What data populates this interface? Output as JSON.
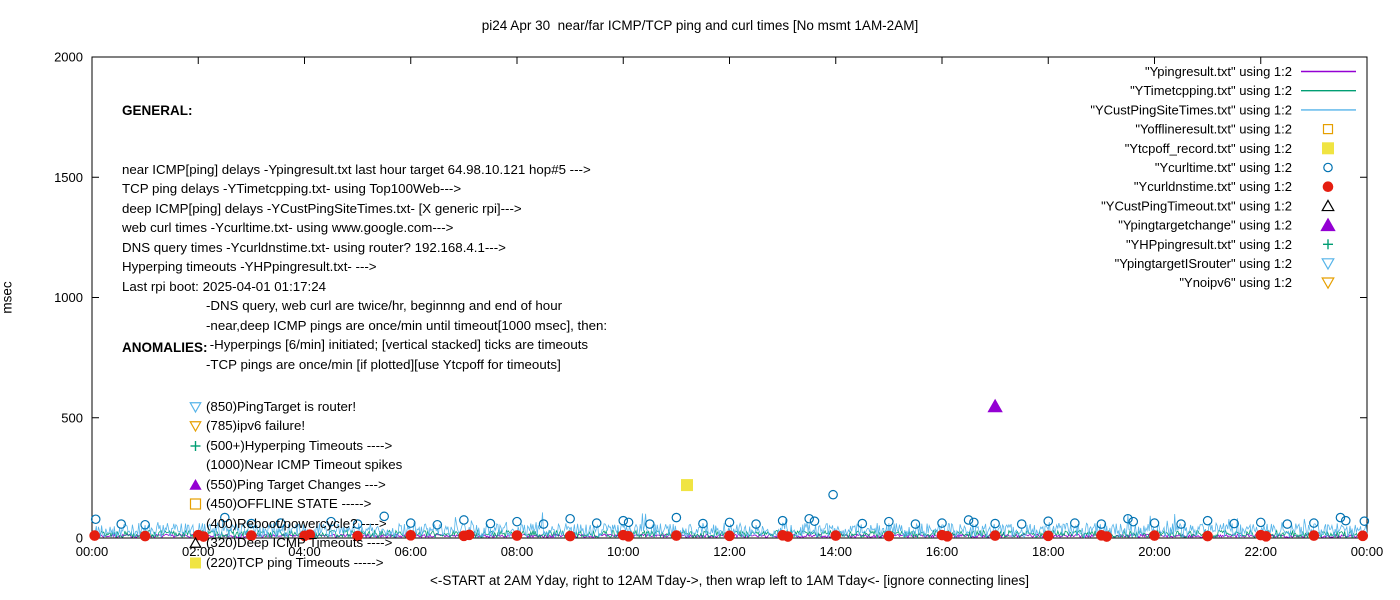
{
  "title": "pi24 Apr 30  near/far ICMP/TCP ping and curl times [No msmt 1AM-2AM]",
  "ylabel": "msec",
  "xlabel": "<-START at 2AM Yday, right to 12AM Tday->, then wrap left to 1AM Tday<- [ignore connecting lines]",
  "general": {
    "header": "GENERAL:",
    "lines": [
      "near ICMP[ping] delays -Ypingresult.txt last hour target 64.98.10.121 hop#5 --->",
      "TCP ping delays -YTimetcpping.txt- using Top100Web--->",
      "deep ICMP[ping] delays -YCustPingSiteTimes.txt- [X generic rpi]--->",
      "web curl times -Ycurltime.txt- using www.google.com--->",
      "DNS query times -Ycurldnstime.txt- using router? 192.168.4.1--->",
      "Hyperping timeouts -YHPpingresult.txt- --->",
      "Last rpi boot: 2025-04-01 01:17:24"
    ],
    "indented_lines": [
      "-DNS query, web curl are twice/hr, beginnng and end of hour",
      "-near,deep ICMP pings are once/min until timeout[1000 msec], then:",
      " -Hyperpings [6/min] initiated; [vertical stacked] ticks are timeouts",
      "-TCP pings are once/min [if plotted][use Ytcpoff for timeouts]"
    ]
  },
  "anomalies": {
    "header": "ANOMALIES:",
    "items": [
      {
        "icon": "triangle-down-open",
        "color": "#56b4e9",
        "text": "(850)PingTarget is router!"
      },
      {
        "icon": "triangle-down-open",
        "color": "#e69f00",
        "text": "(785)ipv6 failure!"
      },
      {
        "icon": "plus",
        "color": "#009e73",
        "text": "(500+)Hyperping Timeouts ---->"
      },
      {
        "icon": null,
        "color": null,
        "text": "(1000)Near ICMP Timeout spikes"
      },
      {
        "icon": "triangle-up-filled",
        "color": "#9400d3",
        "text": "(550)Ping Target Changes --->"
      },
      {
        "icon": "square-open",
        "color": "#e69f00",
        "text": "(450)OFFLINE STATE ----->"
      },
      {
        "icon": null,
        "color": null,
        "text": "(400)Reboot/powercycle? ---->"
      },
      {
        "icon": "triangle-up-open",
        "color": "#000000",
        "text": "(320)Deep ICMP Timeouts ---->"
      },
      {
        "icon": "square-filled",
        "color": "#f0e442",
        "text": "(220)TCP ping Timeouts ----->"
      }
    ]
  },
  "chart_data": {
    "type": "scatter",
    "x_unit": "time-of-day-hours",
    "x_range_hours": [
      0,
      24
    ],
    "x_tick_labels": [
      "00:00",
      "02:00",
      "04:00",
      "06:00",
      "08:00",
      "10:00",
      "12:00",
      "14:00",
      "16:00",
      "18:00",
      "20:00",
      "22:00",
      "00:00"
    ],
    "ylim": [
      0,
      2000
    ],
    "y_ticks": [
      0,
      500,
      1000,
      1500,
      2000
    ],
    "grid": false,
    "legend_position": "top-right-inside",
    "series": [
      {
        "name": "\"Ypingresult.txt\" using 1:2",
        "style": "line",
        "color": "#9400d3",
        "noise": {
          "seed": 7,
          "base": 2,
          "amp": 14
        }
      },
      {
        "name": "\"YTimetcpping.txt\" using 1:2",
        "style": "line",
        "color": "#009e73",
        "noise": {
          "seed": 13,
          "base": 2,
          "amp": 30
        }
      },
      {
        "name": "\"YCustPingSiteTimes.txt\" using 1:2",
        "style": "line",
        "color": "#56b4e9",
        "noise": {
          "seed": 29,
          "base": 2,
          "amp": 60,
          "spike_chance": 0.04,
          "spike_amp": 50
        }
      },
      {
        "name": "\"Yofflineresult.txt\" using 1:2",
        "style": "points",
        "marker": "square-open",
        "color": "#e69f00",
        "size": 4.5,
        "points": []
      },
      {
        "name": "\"Ytcpoff_record.txt\" using 1:2",
        "style": "points",
        "marker": "square-filled",
        "color": "#f0e442",
        "size": 5.5,
        "points": [
          [
            11.2,
            220
          ]
        ]
      },
      {
        "name": "\"Ycurltime.txt\" using 1:2",
        "style": "points",
        "marker": "circle-open",
        "color": "#0072b2",
        "size": 4.2,
        "points": [
          [
            0.07,
            78
          ],
          [
            0.55,
            58
          ],
          [
            1.0,
            55
          ],
          [
            2.5,
            85
          ],
          [
            3.0,
            60
          ],
          [
            3.55,
            62
          ],
          [
            4.5,
            68
          ],
          [
            5.0,
            58
          ],
          [
            5.5,
            90
          ],
          [
            6.0,
            62
          ],
          [
            6.5,
            55
          ],
          [
            7.0,
            75
          ],
          [
            7.5,
            60
          ],
          [
            8.0,
            68
          ],
          [
            8.5,
            58
          ],
          [
            9.0,
            80
          ],
          [
            9.5,
            62
          ],
          [
            10.0,
            72
          ],
          [
            10.1,
            65
          ],
          [
            10.5,
            58
          ],
          [
            11.0,
            85
          ],
          [
            11.5,
            60
          ],
          [
            12.0,
            65
          ],
          [
            12.5,
            58
          ],
          [
            13.0,
            72
          ],
          [
            13.5,
            80
          ],
          [
            13.6,
            70
          ],
          [
            13.95,
            180
          ],
          [
            14.5,
            60
          ],
          [
            15.0,
            68
          ],
          [
            15.5,
            58
          ],
          [
            16.0,
            62
          ],
          [
            16.5,
            75
          ],
          [
            16.6,
            65
          ],
          [
            17.0,
            60
          ],
          [
            17.5,
            58
          ],
          [
            18.0,
            70
          ],
          [
            18.5,
            62
          ],
          [
            19.0,
            58
          ],
          [
            19.5,
            80
          ],
          [
            19.6,
            68
          ],
          [
            20.0,
            62
          ],
          [
            20.5,
            58
          ],
          [
            21.0,
            72
          ],
          [
            21.5,
            60
          ],
          [
            22.0,
            65
          ],
          [
            22.5,
            58
          ],
          [
            23.0,
            62
          ],
          [
            23.5,
            85
          ],
          [
            23.6,
            72
          ],
          [
            23.95,
            70
          ]
        ]
      },
      {
        "name": "\"Ycurldnstime.txt\" using 1:2",
        "style": "points",
        "marker": "circle-filled",
        "color": "#e51e10",
        "size": 4.8,
        "points": [
          [
            0.05,
            10
          ],
          [
            1.0,
            8
          ],
          [
            2.0,
            12
          ],
          [
            2.1,
            6
          ],
          [
            3.0,
            10
          ],
          [
            4.0,
            9
          ],
          [
            4.1,
            14
          ],
          [
            5.0,
            8
          ],
          [
            6.0,
            11
          ],
          [
            7.0,
            9
          ],
          [
            7.1,
            13
          ],
          [
            8.0,
            10
          ],
          [
            9.0,
            8
          ],
          [
            10.0,
            12
          ],
          [
            10.1,
            7
          ],
          [
            11.0,
            10
          ],
          [
            12.0,
            9
          ],
          [
            13.0,
            11
          ],
          [
            13.1,
            6
          ],
          [
            14.0,
            10
          ],
          [
            15.0,
            8
          ],
          [
            16.0,
            12
          ],
          [
            16.1,
            7
          ],
          [
            17.0,
            10
          ],
          [
            18.0,
            9
          ],
          [
            19.0,
            11
          ],
          [
            19.1,
            6
          ],
          [
            20.0,
            10
          ],
          [
            21.0,
            8
          ],
          [
            22.0,
            12
          ],
          [
            22.1,
            7
          ],
          [
            23.0,
            10
          ],
          [
            23.92,
            9
          ]
        ]
      },
      {
        "name": "\"YCustPingTimeout.txt\" using 1:2",
        "style": "points",
        "marker": "triangle-up-open",
        "color": "#000000",
        "size": 5.5,
        "points": []
      },
      {
        "name": "\"Ypingtargetchange\" using 1:2",
        "style": "points",
        "marker": "triangle-up-filled",
        "color": "#9400d3",
        "size": 6.5,
        "points": [
          [
            17.0,
            548
          ]
        ]
      },
      {
        "name": "\"YHPpingresult.txt\" using 1:2",
        "style": "points",
        "marker": "plus",
        "color": "#009e73",
        "size": 5,
        "points": []
      },
      {
        "name": "\"YpingtargetISrouter\" using 1:2",
        "style": "points",
        "marker": "triangle-down-open",
        "color": "#56b4e9",
        "size": 5.5,
        "points": []
      },
      {
        "name": "\"Ynoipv6\" using 1:2",
        "style": "points",
        "marker": "triangle-down-open",
        "color": "#e69f00",
        "size": 5.5,
        "points": []
      }
    ]
  }
}
